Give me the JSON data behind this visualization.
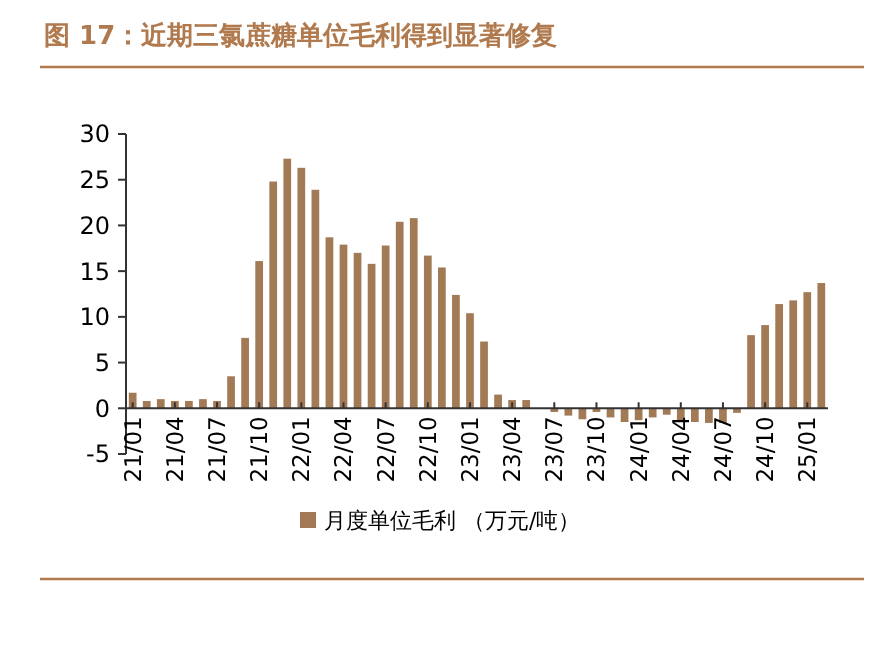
{
  "chart_data": {
    "type": "bar",
    "title": "图 17：近期三氯蔗糖单位毛利得到显著修复",
    "categories": [
      "21/01",
      null,
      null,
      "21/04",
      null,
      null,
      "21/07",
      null,
      null,
      "21/10",
      null,
      null,
      "22/01",
      null,
      null,
      "22/04",
      null,
      null,
      "22/07",
      null,
      null,
      "22/10",
      null,
      null,
      "23/01",
      null,
      null,
      "23/04",
      null,
      null,
      "23/07",
      null,
      null,
      "23/10",
      null,
      null,
      "24/01",
      null,
      null,
      "24/04",
      null,
      null,
      "24/07",
      null,
      null,
      "24/10",
      null,
      null,
      "25/01",
      null
    ],
    "series": [
      {
        "name": "月度单位毛利 （万元/吨）",
        "color": "#a27a56",
        "values": [
          1.7,
          0.8,
          1.0,
          0.8,
          0.8,
          1.0,
          0.8,
          3.5,
          7.7,
          16.1,
          24.8,
          27.3,
          26.3,
          23.9,
          18.7,
          17.9,
          17.0,
          15.8,
          17.8,
          20.4,
          20.8,
          16.7,
          15.4,
          12.4,
          10.4,
          7.3,
          1.5,
          0.9,
          0.9,
          0,
          -0.4,
          -0.8,
          -1.2,
          -0.4,
          -1.0,
          -1.5,
          -1.3,
          -1.0,
          -0.7,
          -1.5,
          -1.5,
          -1.6,
          -1.6,
          -0.5,
          8.0,
          9.1,
          11.4,
          11.8,
          12.7,
          13.7
        ]
      }
    ],
    "ylim": [
      -5,
      30
    ],
    "yticks": [
      -5,
      0,
      5,
      10,
      15,
      20,
      25,
      30
    ],
    "legend": "bottom",
    "grid": false
  }
}
